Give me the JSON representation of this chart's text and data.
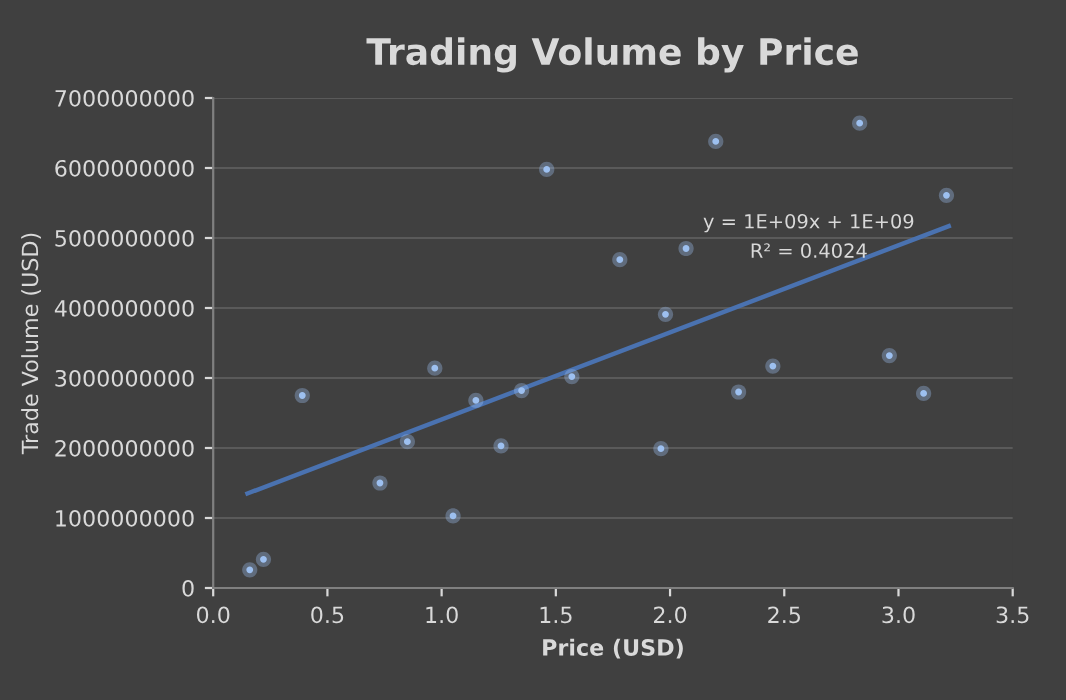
{
  "chart_data": {
    "type": "scatter",
    "title": "Trading Volume by Price",
    "xlabel": "Price (USD)",
    "ylabel": "Trade Volume (USD)",
    "series": [
      {
        "color": "#9dc0f0",
        "marker": "circle",
        "x": [
          0.16,
          0.22,
          0.39,
          0.73,
          0.85,
          0.97,
          1.05,
          1.15,
          1.26,
          1.35,
          1.46,
          1.57,
          1.78,
          1.96,
          1.98,
          2.07,
          2.2,
          2.3,
          2.45,
          2.83,
          2.96,
          3.11,
          3.21
        ],
        "values": [
          260000000,
          410000000,
          2750000000,
          1500000000,
          2090000000,
          3140000000,
          1030000000,
          2680000000,
          2030000000,
          2820000000,
          5980000000,
          3020000000,
          4690000000,
          1990000000,
          3910000000,
          4850000000,
          6380000000,
          2800000000,
          3170000000,
          6640000000,
          3320000000,
          2780000000,
          5610000000
        ]
      },
      {
        "type": "line",
        "color": "#4a72b0",
        "x": [
          0.15,
          3.22
        ],
        "values": [
          1350000000,
          5170000000
        ]
      }
    ],
    "xlim": [
      0,
      3.5
    ],
    "xticks": [
      {
        "value": 0,
        "label": "0.0"
      },
      {
        "value": 0.5,
        "label": "0.5"
      },
      {
        "value": 1,
        "label": "1.0"
      },
      {
        "value": 1.5,
        "label": "1.5"
      },
      {
        "value": 2,
        "label": "2.0"
      },
      {
        "value": 2.5,
        "label": "2.5"
      },
      {
        "value": 3,
        "label": "3.0"
      },
      {
        "value": 3.5,
        "label": "3.5"
      }
    ],
    "ylim": [
      0,
      7000000000
    ],
    "yticks": [
      0,
      1000000000,
      2000000000,
      3000000000,
      4000000000,
      5000000000,
      6000000000,
      7000000000
    ],
    "grid": "y",
    "annotations": [
      "y = 1E+09x + 1E+09",
      "R² = 0.4024"
    ]
  }
}
